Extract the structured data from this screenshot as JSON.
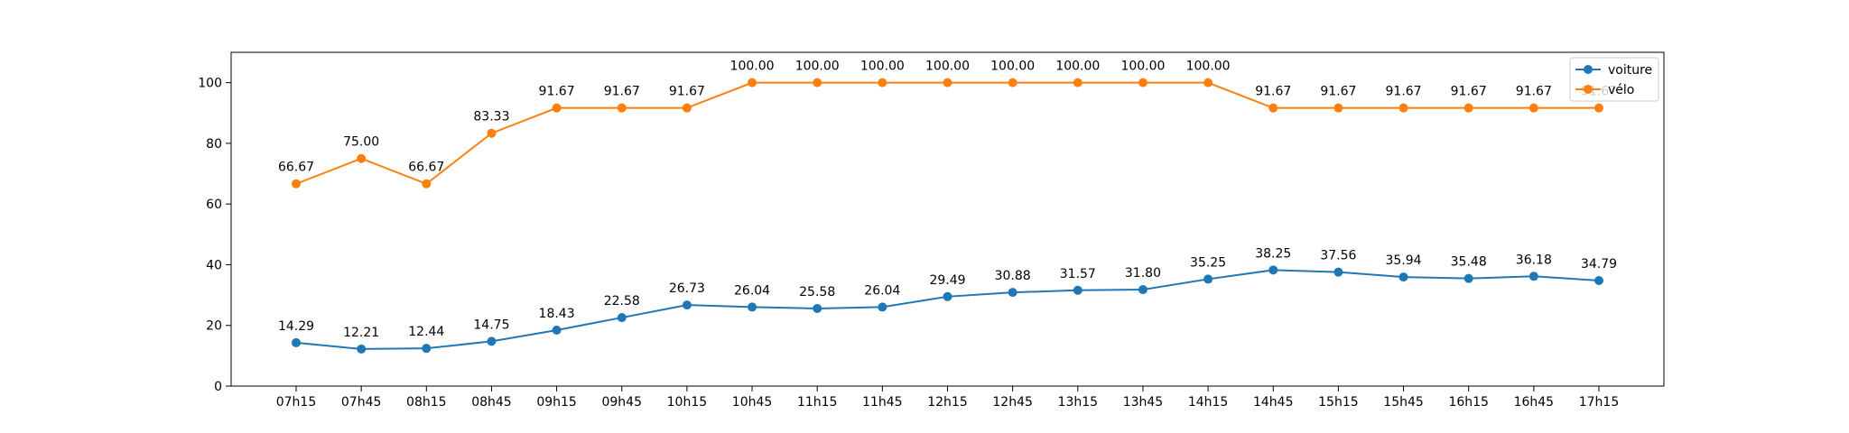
{
  "chart_data": {
    "type": "line",
    "categories": [
      "07h15",
      "07h45",
      "08h15",
      "08h45",
      "09h15",
      "09h45",
      "10h15",
      "10h45",
      "11h15",
      "11h45",
      "12h15",
      "12h45",
      "13h15",
      "13h45",
      "14h15",
      "14h45",
      "15h15",
      "15h45",
      "16h15",
      "16h45",
      "17h15"
    ],
    "series": [
      {
        "name": "voiture",
        "color": "#1f77b4",
        "values": [
          14.29,
          12.21,
          12.44,
          14.75,
          18.43,
          22.58,
          26.73,
          26.04,
          25.58,
          26.04,
          29.49,
          30.88,
          31.57,
          31.8,
          35.25,
          38.25,
          37.56,
          35.94,
          35.48,
          36.18,
          34.79
        ]
      },
      {
        "name": "vélo",
        "color": "#ff7f0e",
        "values": [
          66.67,
          75.0,
          66.67,
          83.33,
          91.67,
          91.67,
          91.67,
          100.0,
          100.0,
          100.0,
          100.0,
          100.0,
          100.0,
          100.0,
          100.0,
          91.67,
          91.67,
          91.67,
          91.67,
          91.67,
          91.67
        ]
      }
    ],
    "ylim": [
      0,
      110
    ],
    "yticks": [
      0,
      20,
      40,
      60,
      80,
      100
    ],
    "grid": false,
    "legend_position": "top-right",
    "data_labels": true,
    "label_decimals": 2
  }
}
